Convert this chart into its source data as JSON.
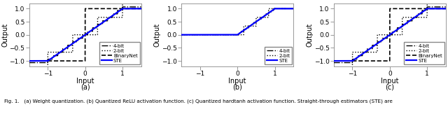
{
  "xlim": [
    -1.5,
    1.5
  ],
  "ylim": [
    -1.2,
    1.2
  ],
  "xticks": [
    -1,
    0,
    1
  ],
  "yticks": [
    -1,
    -0.5,
    0,
    0.5,
    1
  ],
  "xlabel": "Input",
  "ylabel": "Output",
  "ste_color": "#0000ff",
  "binary_color": "#000000",
  "quant2_color": "#000000",
  "quant4_color": "#000000",
  "ste_lw": 1.6,
  "binary_lw": 1.2,
  "quant_lw": 1.0,
  "bg_color": "#ffffff",
  "caption": "Fig. 1.   (a) Weight quantization. (b) Quantized ReLU activation function. (c) Quantized hardtanh activation function. Straight-through estimators (STE) are"
}
